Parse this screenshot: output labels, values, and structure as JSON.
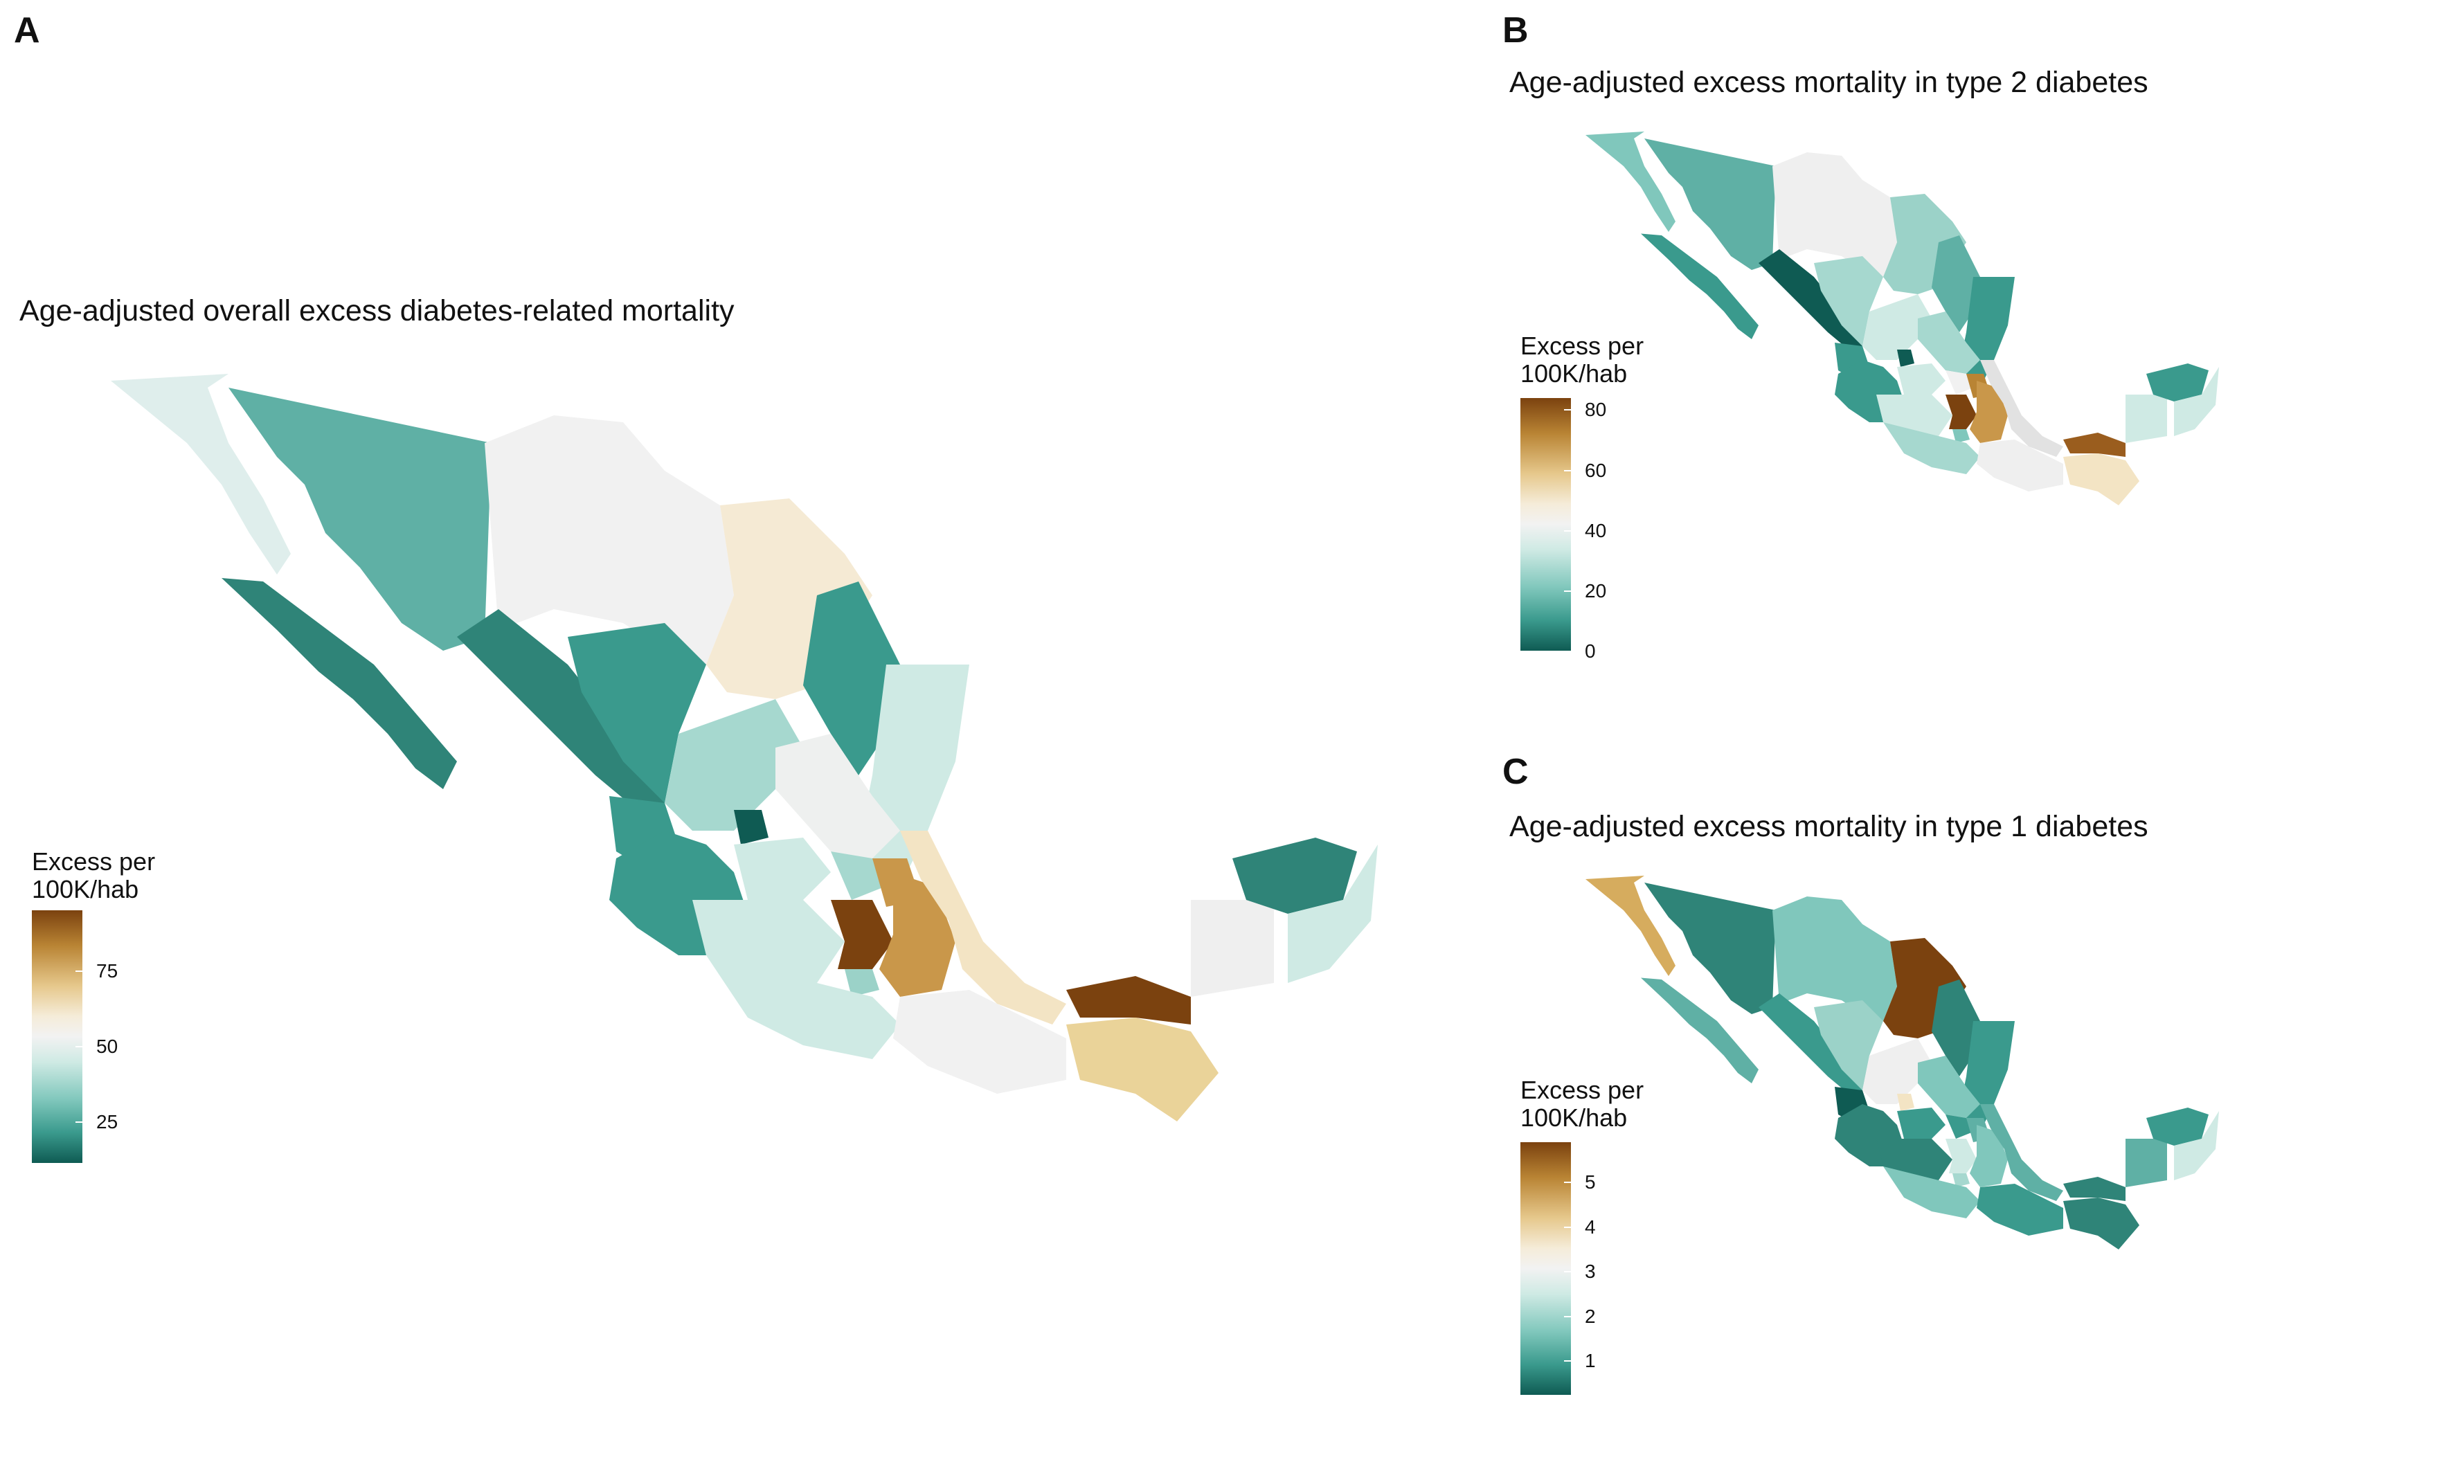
{
  "panels": [
    {
      "letter": "A",
      "title": "Age-adjusted overall excess diabetes-related mortality",
      "legend": {
        "title_line1": "Excess per",
        "title_line2": "100K/hab",
        "ticks": [
          "75",
          "50",
          "25"
        ]
      }
    },
    {
      "letter": "B",
      "title": "Age-adjusted excess mortality in type 2 diabetes",
      "legend": {
        "title_line1": "Excess per",
        "title_line2": "100K/hab",
        "ticks": [
          "80",
          "60",
          "40",
          "20",
          "0"
        ]
      }
    },
    {
      "letter": "C",
      "title": "Age-adjusted excess mortality in type 1 diabetes",
      "legend": {
        "title_line1": "Excess per",
        "title_line2": "100K/hab",
        "ticks": [
          "5",
          "4",
          "3",
          "2",
          "1"
        ]
      }
    }
  ],
  "colors": {
    "dark_brown": "#7b420f",
    "brown": "#b98434",
    "tan": "#e6c88c",
    "cream": "#f5ecd9",
    "neutral": "#f2f2f2",
    "pale_teal": "#cfeae4",
    "light_teal": "#80c7bc",
    "teal": "#3a9a8d",
    "dark_teal": "#0f5b53"
  }
}
